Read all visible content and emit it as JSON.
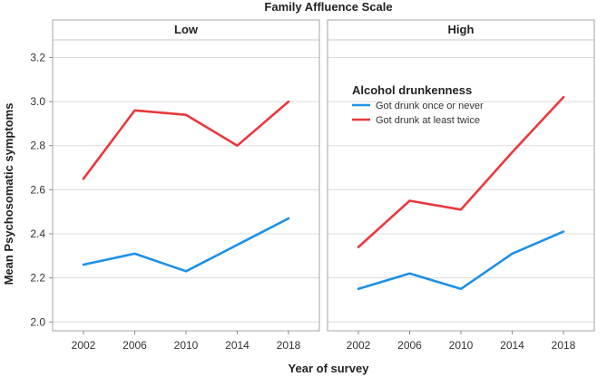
{
  "chart_data": {
    "type": "line",
    "title": "Family Affluence Scale",
    "xlabel": "Year of survey",
    "ylabel": "Mean Psychosomatic symptoms",
    "ylim": [
      1.96,
      3.28
    ],
    "yticks": [
      "2.0",
      "2.2",
      "2.4",
      "2.6",
      "2.8",
      "3.0",
      "3.2"
    ],
    "categories": [
      "2002",
      "2006",
      "2010",
      "2014",
      "2018"
    ],
    "grid": true,
    "legend": {
      "title": "Alcohol drunkenness",
      "placement": "top-left of right panel"
    },
    "panels": [
      {
        "label": "Low",
        "series": [
          {
            "name": "Got drunk once or never",
            "color": "#1e90e6",
            "values": [
              2.26,
              2.31,
              2.23,
              2.35,
              2.47
            ]
          },
          {
            "name": "Got drunk at least twice",
            "color": "#e8393e",
            "values": [
              2.65,
              2.96,
              2.94,
              2.8,
              3.0
            ]
          }
        ]
      },
      {
        "label": "High",
        "series": [
          {
            "name": "Got drunk once or never",
            "color": "#1e90e6",
            "values": [
              2.15,
              2.22,
              2.15,
              2.31,
              2.41
            ]
          },
          {
            "name": "Got drunk at least twice",
            "color": "#e8393e",
            "values": [
              2.34,
              2.55,
              2.51,
              2.77,
              3.02
            ]
          }
        ]
      }
    ]
  }
}
